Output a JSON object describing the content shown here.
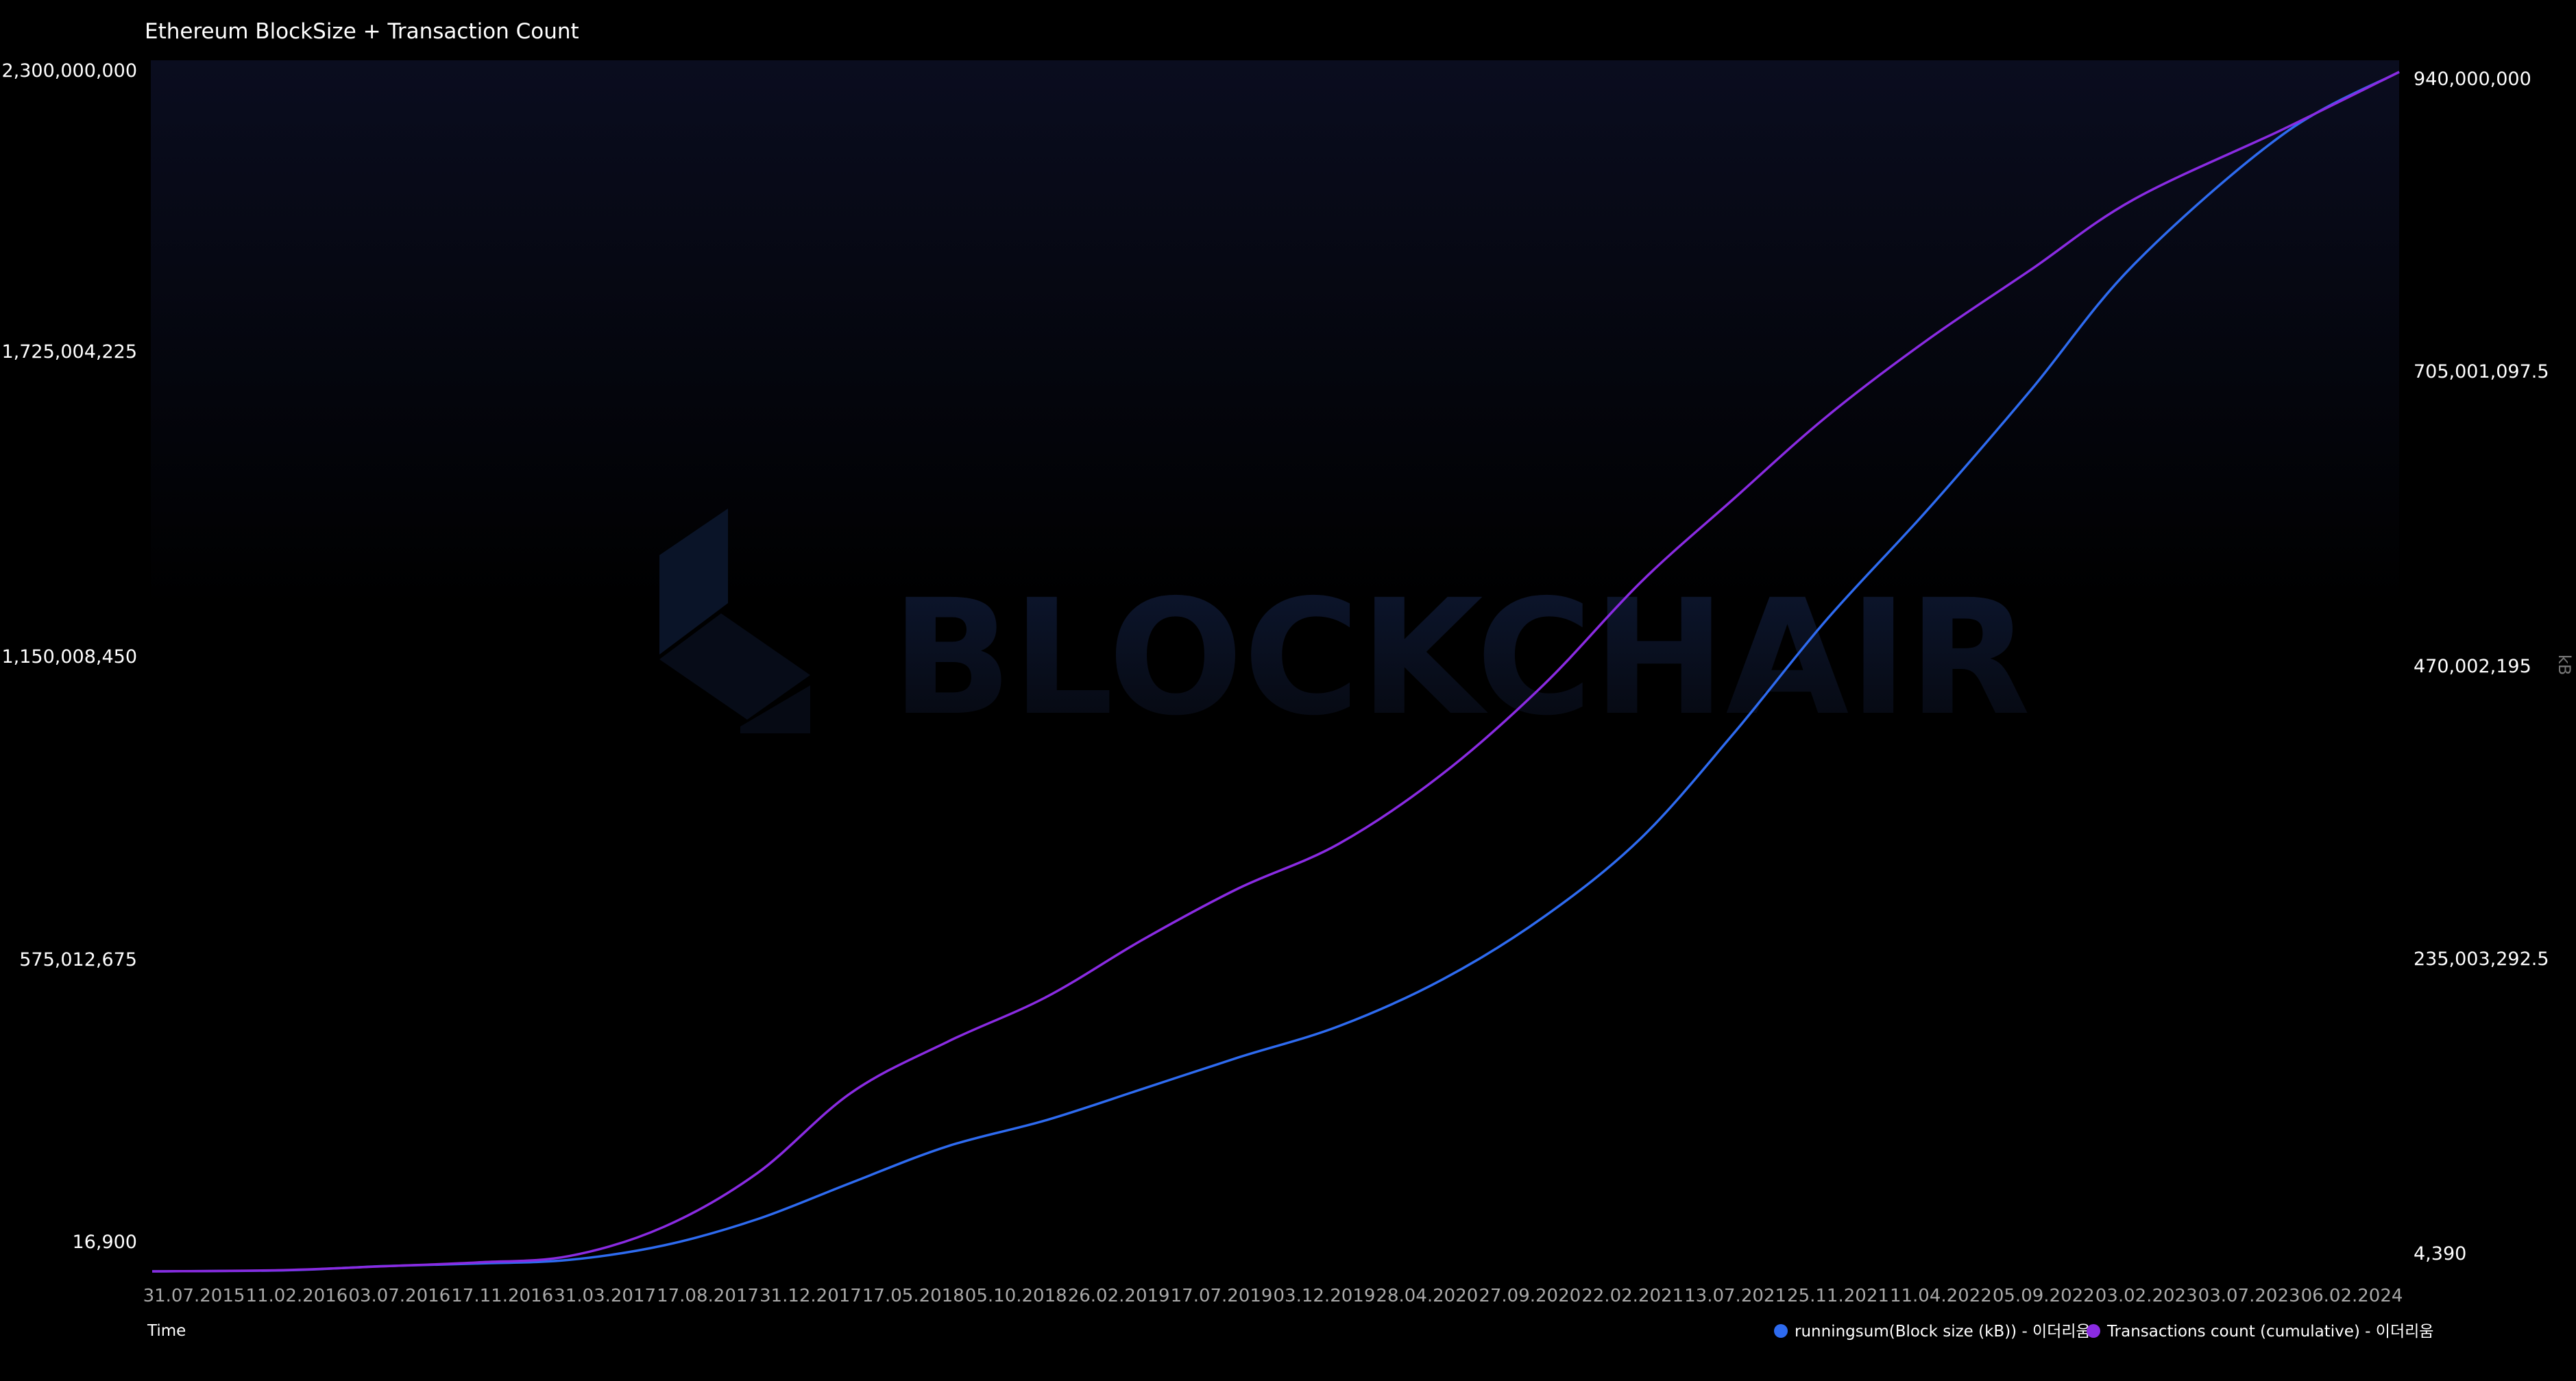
{
  "colors": {
    "background": "#000000",
    "block_size_line": "#2e6bf0",
    "tx_count_line": "#8a2be2",
    "axis_text": "#ffffff",
    "date_text": "#a8a8a8",
    "watermark": "#0d1526"
  },
  "watermark": {
    "text": "BLOCKCHAIR"
  },
  "chart_data": {
    "type": "line",
    "title": "Ethereum BlockSize + Transaction Count",
    "xlabel": "Time",
    "ylabel_right": "kB",
    "x_tick_labels": [
      "31.07.2015",
      "11.02.2016",
      "03.07.2016",
      "17.11.2016",
      "31.03.2017",
      "17.08.2017",
      "31.12.2017",
      "17.05.2018",
      "05.10.2018",
      "26.02.2019",
      "17.07.2019",
      "03.12.2019",
      "28.04.2020",
      "27.09.2020",
      "22.02.2021",
      "13.07.2021",
      "25.11.2021",
      "11.04.2022",
      "05.09.2022",
      "03.02.2023",
      "03.07.2023",
      "06.02.2024"
    ],
    "y_left_ticks": [
      "2,300,000,000",
      "1,725,004,225",
      "1,150,008,450",
      "575,012,675",
      "16,900"
    ],
    "y_right_ticks": [
      "940,000,000",
      "705,001,097.5",
      "470,002,195",
      "235,003,292.5",
      "4,390"
    ],
    "y_left_range": [
      16900,
      2300000000
    ],
    "y_right_range": [
      4390,
      940000000
    ],
    "legend_position": "bottom-right",
    "grid": false,
    "series": [
      {
        "name": "runningsum(Block size (kB)) - 이더리움",
        "axis": "left",
        "x": [
          "31.07.2015",
          "11.02.2016",
          "03.07.2016",
          "17.11.2016",
          "31.03.2017",
          "17.08.2017",
          "31.12.2017",
          "17.05.2018",
          "05.10.2018",
          "26.02.2019",
          "17.07.2019",
          "03.12.2019",
          "28.04.2020",
          "27.09.2020",
          "22.02.2021",
          "13.07.2021",
          "25.11.2021",
          "11.04.2022",
          "05.09.2022",
          "03.02.2023",
          "03.07.2023",
          "06.02.2024",
          "25.07.2024"
        ],
        "values": [
          16900,
          2000000,
          10000000,
          15000000,
          22000000,
          50000000,
          100000000,
          170000000,
          240000000,
          290000000,
          350000000,
          410000000,
          470000000,
          560000000,
          680000000,
          830000000,
          1030000000,
          1250000000,
          1460000000,
          1690000000,
          1930000000,
          2180000000,
          2300000000
        ]
      },
      {
        "name": "Transactions count (cumulative) - 이더리움",
        "axis": "right",
        "x": [
          "31.07.2015",
          "11.02.2016",
          "03.07.2016",
          "17.11.2016",
          "31.03.2017",
          "17.08.2017",
          "31.12.2017",
          "17.05.2018",
          "05.10.2018",
          "26.02.2019",
          "17.07.2019",
          "03.12.2019",
          "28.04.2020",
          "27.09.2020",
          "22.02.2021",
          "13.07.2021",
          "25.11.2021",
          "11.04.2022",
          "05.09.2022",
          "03.02.2023",
          "03.07.2023",
          "06.02.2024",
          "25.07.2024"
        ],
        "values": [
          4390,
          1000000,
          4000000,
          7000000,
          12000000,
          35000000,
          77000000,
          140000000,
          180000000,
          215000000,
          260000000,
          300000000,
          335000000,
          390000000,
          460000000,
          540000000,
          605000000,
          670000000,
          730000000,
          785000000,
          840000000,
          895000000,
          940000000
        ]
      }
    ]
  }
}
